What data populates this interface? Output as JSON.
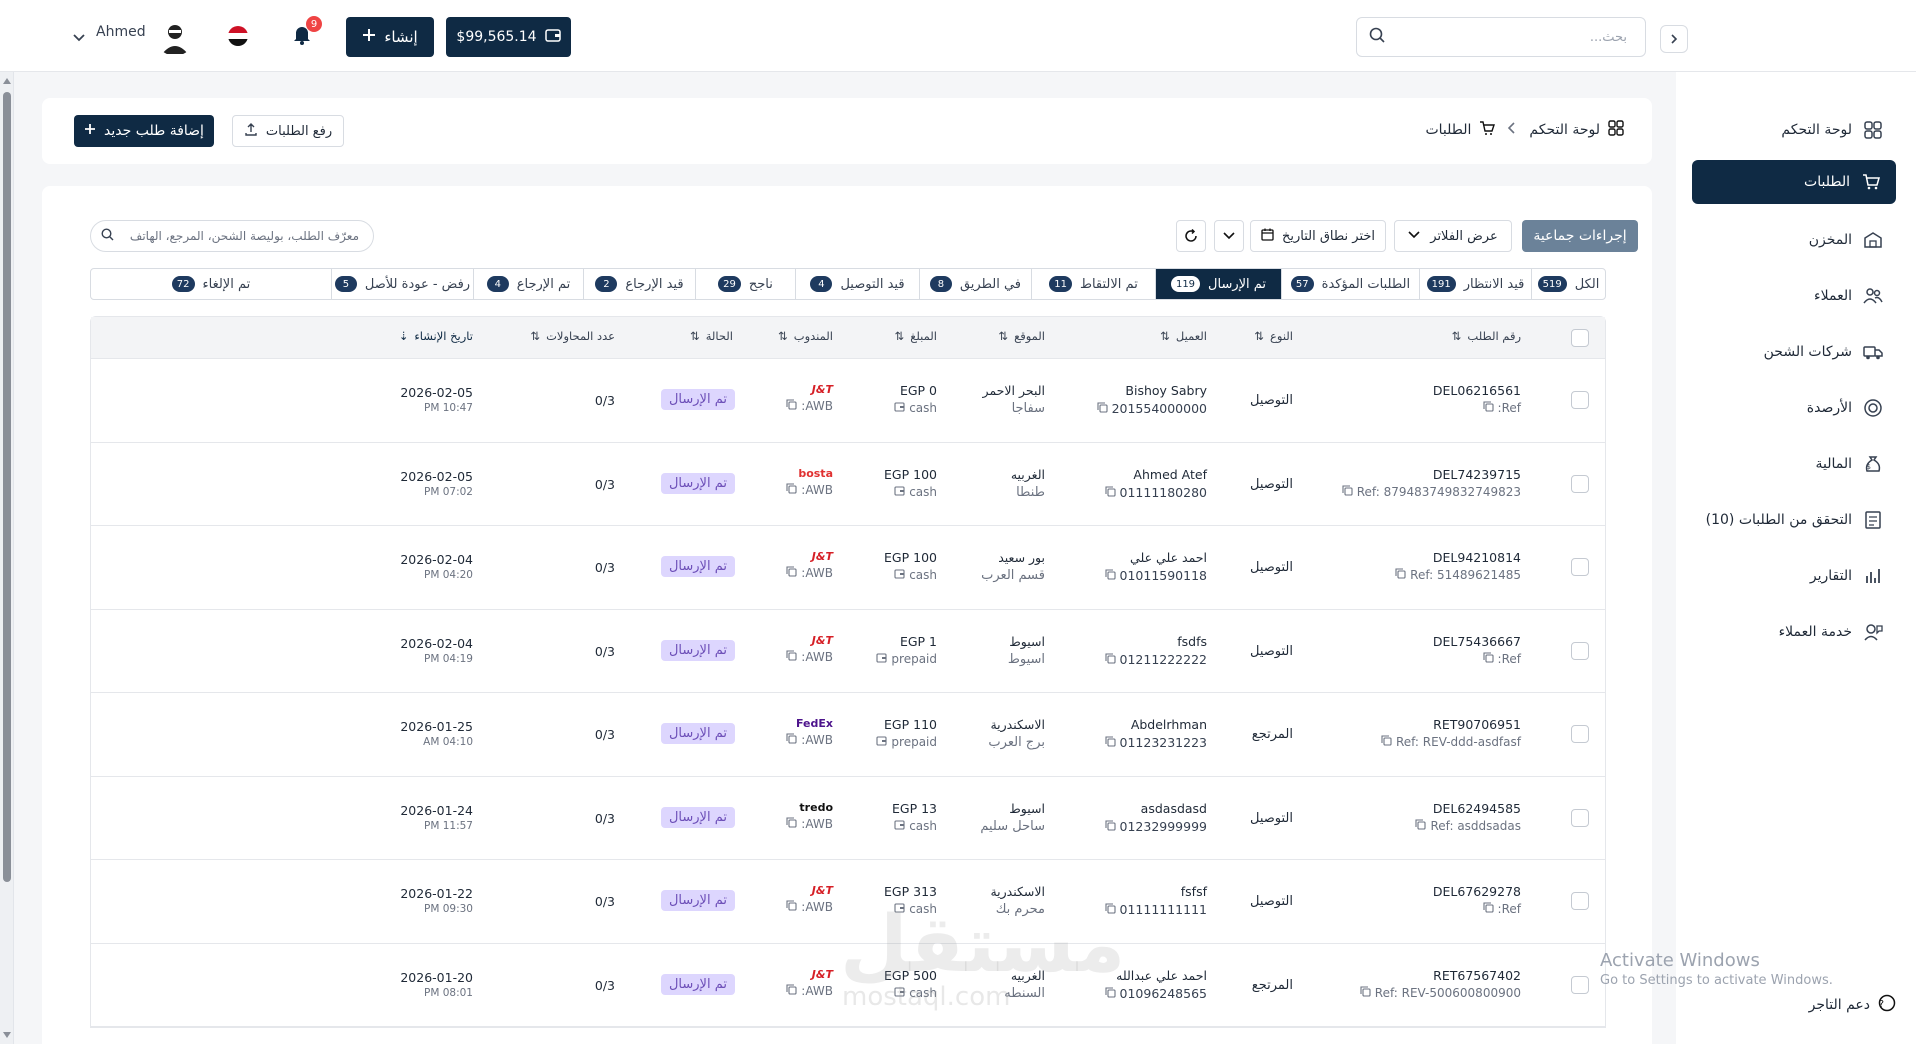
{
  "header": {
    "user_name": "Ahmed",
    "notifications_count": "9",
    "create_label": "إنشاء",
    "balance": "$99,565.14",
    "search_placeholder": "بحث..."
  },
  "sidebar": {
    "items": [
      {
        "label": "لوحة التحكم",
        "icon": "dashboard-icon"
      },
      {
        "label": "الطلبات",
        "icon": "cart-icon"
      },
      {
        "label": "المخزن",
        "icon": "warehouse-icon"
      },
      {
        "label": "العملاء",
        "icon": "users-icon"
      },
      {
        "label": "شركات الشحن",
        "icon": "truck-icon"
      },
      {
        "label": "الأرصدة",
        "icon": "balance-icon"
      },
      {
        "label": "المالية",
        "icon": "money-bag-icon"
      },
      {
        "label": "التحقق من الطلبات (10)",
        "icon": "checklist-icon"
      },
      {
        "label": "التقارير",
        "icon": "reports-icon"
      },
      {
        "label": "خدمة العملاء",
        "icon": "support-agent-icon"
      }
    ],
    "support_label": "دعم التاجر"
  },
  "breadcrumb": {
    "root": "لوحة التحكم",
    "current": "الطلبات",
    "add_order": "إضافة طلب جديد",
    "upload_orders": "رفع الطلبات"
  },
  "toolbar": {
    "bulk_actions": "إجراءات جماعية",
    "show_filters": "عرض الفلاتر",
    "date_range": "اختر نطاق التاريخ",
    "search_placeholder": "معرّف الطلب، بوليصة الشحن، المرجع، الهاتف"
  },
  "tabs": [
    {
      "label": "الكل",
      "count": "519"
    },
    {
      "label": "قيد الانتظار",
      "count": "191"
    },
    {
      "label": "الطلبات المؤكدة",
      "count": "57"
    },
    {
      "label": "تم الإرسال",
      "count": "119"
    },
    {
      "label": "تم الالتقاط",
      "count": "11"
    },
    {
      "label": "في الطريق",
      "count": "8"
    },
    {
      "label": "قيد التوصيل",
      "count": "4"
    },
    {
      "label": "ناجح",
      "count": "29"
    },
    {
      "label": "قيد الإرجاع",
      "count": "2"
    },
    {
      "label": "تم الإرجاع",
      "count": "4"
    },
    {
      "label": "رفض - عودة للأصل",
      "count": "5"
    },
    {
      "label": "تم الإلغاء",
      "count": "72"
    }
  ],
  "table": {
    "columns": [
      "رقم الطلب",
      "النوع",
      "العميل",
      "الموقع",
      "المبلغ",
      "المندوب",
      "الحالة",
      "عدد المحاولات",
      "تاريخ الإنشاء"
    ],
    "rows": [
      {
        "order": "DEL06216561",
        "ref": "Ref:",
        "type": "التوصيل",
        "customer": "Bishoy Sabry",
        "phone": "201554000000",
        "city": "البحر الاحمر",
        "area": "سفاجا",
        "amount": "EGP 0",
        "payment": "cash",
        "carrier": "J&T",
        "awb": "AWB:",
        "status": "تم الإرسال",
        "attempts": "0/3",
        "date": "2026-02-05",
        "time": "PM 10:47"
      },
      {
        "order": "DEL74239715",
        "ref": "Ref: 879483749832749823",
        "type": "التوصيل",
        "customer": "Ahmed Atef",
        "phone": "01111180280",
        "city": "الغربيه",
        "area": "طنطا",
        "amount": "EGP 100",
        "payment": "cash",
        "carrier": "bosta",
        "awb": "AWB:",
        "status": "تم الإرسال",
        "attempts": "0/3",
        "date": "2026-02-05",
        "time": "PM 07:02"
      },
      {
        "order": "DEL94210814",
        "ref": "Ref: 51489621485",
        "type": "التوصيل",
        "customer": "احمد علي علي",
        "phone": "01011590118",
        "city": "بور سعيد",
        "area": "قسم العرب",
        "amount": "EGP 100",
        "payment": "cash",
        "carrier": "J&T",
        "awb": "AWB:",
        "status": "تم الإرسال",
        "attempts": "0/3",
        "date": "2026-02-04",
        "time": "PM 04:20"
      },
      {
        "order": "DEL75436667",
        "ref": "Ref:",
        "type": "التوصيل",
        "customer": "fsdfs",
        "phone": "01211222222",
        "city": "اسيوط",
        "area": "اسيوط",
        "amount": "EGP 1",
        "payment": "prepaid",
        "carrier": "J&T",
        "awb": "AWB:",
        "status": "تم الإرسال",
        "attempts": "0/3",
        "date": "2026-02-04",
        "time": "PM 04:19"
      },
      {
        "order": "RET90706951",
        "ref": "Ref: REV-ddd-asdfasf",
        "type": "المرتجع",
        "customer": "Abdelrhman",
        "phone": "01123231223",
        "city": "الاسكندرية",
        "area": "برج العرب",
        "amount": "EGP 110",
        "payment": "prepaid",
        "carrier": "FedEx",
        "awb": "AWB:",
        "status": "تم الإرسال",
        "attempts": "0/3",
        "date": "2026-01-25",
        "time": "AM 04:10"
      },
      {
        "order": "DEL62494585",
        "ref": "Ref: asddsadas",
        "type": "التوصيل",
        "customer": "asdasdasd",
        "phone": "01232999999",
        "city": "اسيوط",
        "area": "ساحل سليم",
        "amount": "EGP 13",
        "payment": "cash",
        "carrier": "tredo",
        "awb": "AWB:",
        "status": "تم الإرسال",
        "attempts": "0/3",
        "date": "2026-01-24",
        "time": "PM 11:57"
      },
      {
        "order": "DEL67629278",
        "ref": "Ref:",
        "type": "التوصيل",
        "customer": "fsfsf",
        "phone": "01111111111",
        "city": "الاسكندرية",
        "area": "محرم بك",
        "amount": "EGP 313",
        "payment": "cash",
        "carrier": "J&T",
        "awb": "AWB:",
        "status": "تم الإرسال",
        "attempts": "0/3",
        "date": "2026-01-22",
        "time": "PM 09:30"
      },
      {
        "order": "RET67567402",
        "ref": "Ref: REV-500600800900",
        "type": "المرتجع",
        "customer": "احمد علي عبدالله",
        "phone": "01096248565",
        "city": "الغربيه",
        "area": "السنطه",
        "amount": "EGP 500",
        "payment": "cash",
        "carrier": "J&T",
        "awb": "AWB:",
        "status": "تم الإرسال",
        "attempts": "0/3",
        "date": "2026-01-20",
        "time": "PM 08:01"
      }
    ]
  },
  "watermarks": {
    "activate_title": "Activate Windows",
    "activate_sub": "Go to Settings to activate Windows.",
    "mostaql": "مستقل",
    "mostaql_sub": "mostaql.com"
  },
  "colors": {
    "primary": "#0f2a44",
    "status_bg": "#ddd6fe",
    "status_text": "#6d4fb8",
    "badge": "#ef4444"
  }
}
